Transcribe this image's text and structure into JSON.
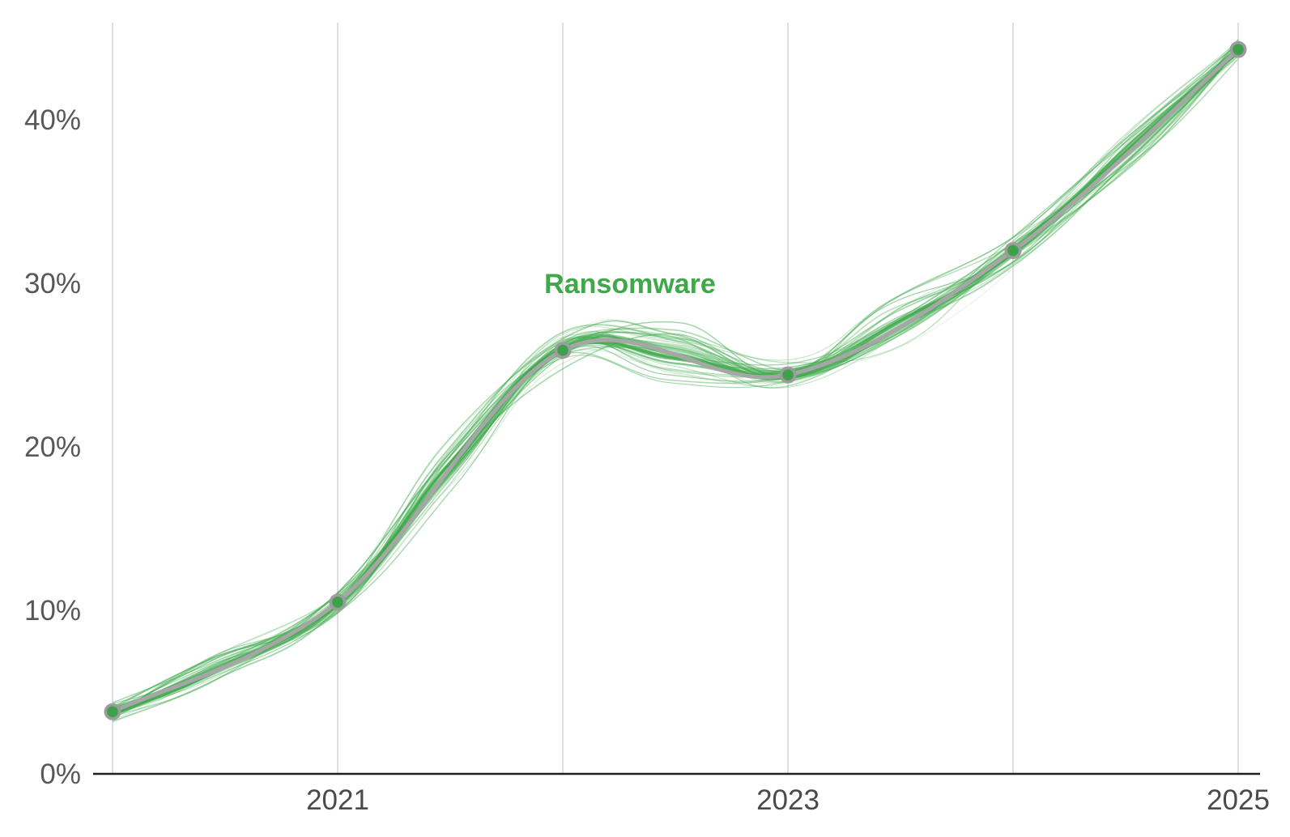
{
  "chart_data": {
    "type": "line",
    "title": "",
    "series_label": "Ransomware",
    "x": [
      2020,
      2021,
      2022,
      2023,
      2024,
      2025
    ],
    "series": [
      {
        "name": "Ransomware",
        "values": [
          3.8,
          10.5,
          25.9,
          24.4,
          32.0,
          44.3
        ]
      }
    ],
    "x_tick_labels": [
      "2021",
      "2023",
      "2025"
    ],
    "x_tick_years": [
      2021,
      2023,
      2025
    ],
    "y_tick_values": [
      0,
      10,
      20,
      30,
      40
    ],
    "y_tick_labels": [
      "0%",
      "10%",
      "20%",
      "30%",
      "40%"
    ],
    "xlim": [
      2020,
      2025
    ],
    "ylim": [
      0,
      46
    ],
    "grid": "vertical-only",
    "legend_position": "inline-annotation-above-2022-peak",
    "style": {
      "ensemble_line_count": 42,
      "colors": {
        "ensemble_green": "#3fa94c",
        "label_green": "#3ea84a",
        "main_line_gray": "#a6a6a6",
        "marker_ring_gray": "#9c9c9c",
        "marker_fill_green": "#3da04a",
        "axis_black": "#1f1f1f",
        "gridline_gray": "#dfdfdf",
        "y_tick_text": "#585858",
        "x_tick_text": "#4a4a4a"
      }
    }
  }
}
